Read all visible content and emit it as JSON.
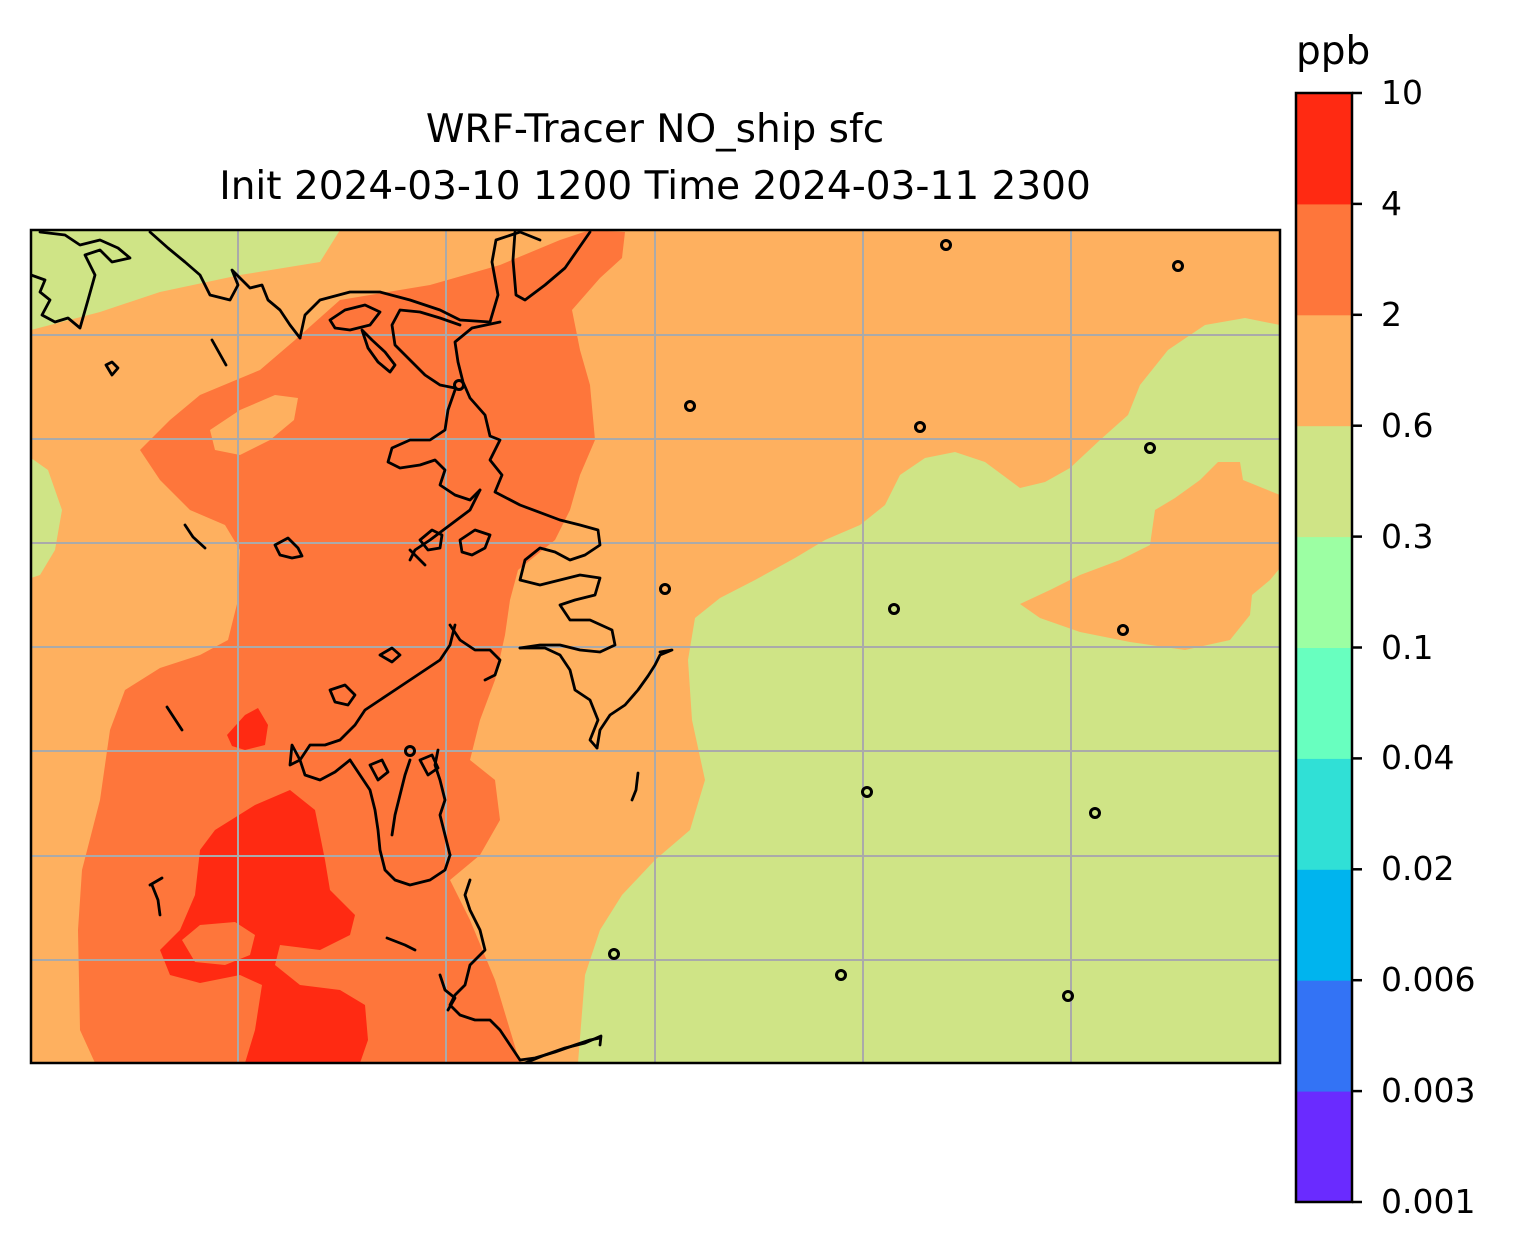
{
  "title": {
    "line1": "WRF-Tracer NO_ship sfc",
    "line2": "Init 2024-03-10 1200 Time 2024-03-11 2300"
  },
  "colorbar": {
    "unit_label": "ppb",
    "levels": [
      "0.001",
      "0.003",
      "0.006",
      "0.02",
      "0.04",
      "0.1",
      "0.3",
      "0.6",
      "2",
      "4",
      "10"
    ],
    "colors": [
      "#6a2bff",
      "#3373f5",
      "#00b4ee",
      "#30e0d6",
      "#68ffbf",
      "#9cffa3",
      "#cfe486",
      "#feb05f",
      "#fe763b",
      "#ff2a12"
    ]
  },
  "map": {
    "field_colors": {
      "band_0_3_to_0_6": "#cfe486",
      "band_0_6_to_2": "#feb05f",
      "band_2_to_4": "#fe763b",
      "band_4_to_10": "#ff2a12"
    },
    "gridline_color": "#aaaaaa",
    "coastline_color": "#000000",
    "station_markers": "circle-markers"
  }
}
